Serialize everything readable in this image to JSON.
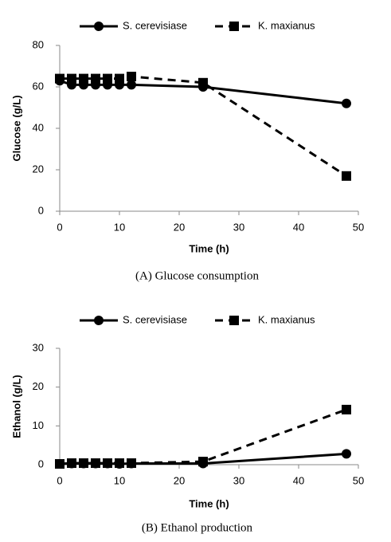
{
  "chart_data": [
    {
      "type": "line",
      "caption": "(A) Glucose consumption",
      "xlabel": "Time (h)",
      "ylabel": "Glucose (g/L)",
      "x": [
        0,
        2,
        4,
        6,
        8,
        10,
        12,
        24,
        48
      ],
      "series": [
        {
          "name": "S. cerevisiase",
          "color": "#000000",
          "marker": "circle",
          "linestyle": "solid",
          "values": [
            63,
            61,
            61,
            61,
            61,
            61,
            61,
            60,
            52
          ]
        },
        {
          "name": "K. maxianus",
          "color": "#000000",
          "marker": "square",
          "linestyle": "dashed",
          "values": [
            64,
            64,
            64,
            64,
            64,
            64,
            65,
            62,
            17
          ]
        }
      ],
      "xlim": [
        0,
        50
      ],
      "xticks": [
        0,
        10,
        20,
        30,
        40,
        50
      ],
      "ylim": [
        0,
        80
      ],
      "yticks": [
        0,
        20,
        40,
        60,
        80
      ],
      "legend": "top"
    },
    {
      "type": "line",
      "caption": "(B) Ethanol production",
      "xlabel": "Time (h)",
      "ylabel": "Ethanol (g/L)",
      "x": [
        0,
        2,
        4,
        6,
        8,
        10,
        12,
        24,
        48
      ],
      "series": [
        {
          "name": "S. cerevisiase",
          "color": "#000000",
          "marker": "circle",
          "linestyle": "solid",
          "values": [
            0.2,
            0.3,
            0.3,
            0.3,
            0.3,
            0.2,
            0.3,
            0.3,
            2.8
          ]
        },
        {
          "name": "K. maxianus",
          "color": "#000000",
          "marker": "square",
          "linestyle": "dashed",
          "values": [
            0.2,
            0.4,
            0.4,
            0.4,
            0.4,
            0.4,
            0.4,
            0.8,
            14.2
          ]
        }
      ],
      "xlim": [
        0,
        50
      ],
      "xticks": [
        0,
        10,
        20,
        30,
        40,
        50
      ],
      "ylim": [
        0,
        30
      ],
      "yticks": [
        0,
        10,
        20,
        30
      ],
      "legend": "top"
    }
  ]
}
